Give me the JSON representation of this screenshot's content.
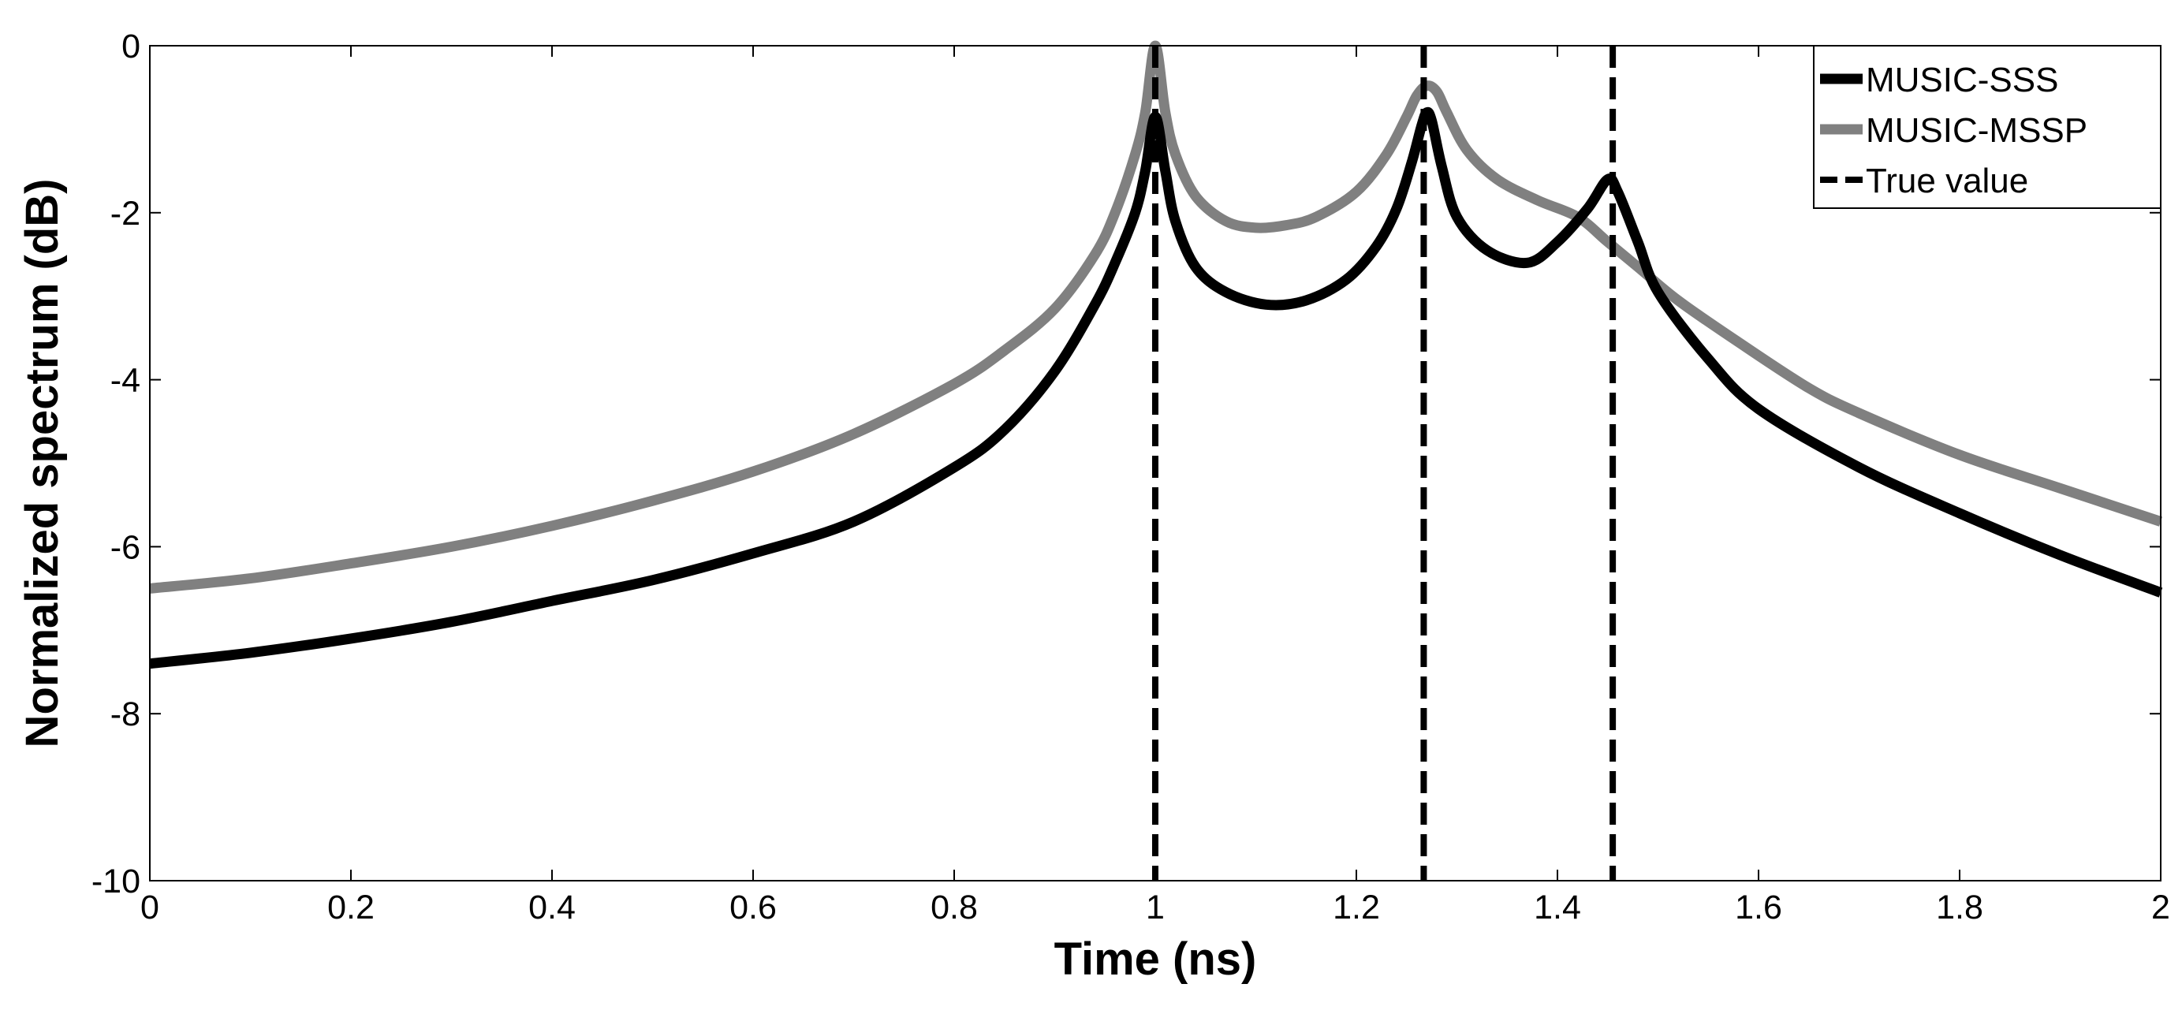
{
  "chart_data": {
    "type": "line",
    "title": "",
    "xlabel": "Time (ns)",
    "ylabel": "Normalized spectrum (dB)",
    "xlim": [
      0,
      2
    ],
    "ylim": [
      -10,
      0
    ],
    "grid": false,
    "legend_position": "top-right",
    "x_ticks": [
      0,
      0.2,
      0.4,
      0.6,
      0.8,
      1,
      1.2,
      1.4,
      1.6,
      1.8,
      2
    ],
    "x_tick_labels": [
      "0",
      "0.2",
      "0.4",
      "0.6",
      "0.8",
      "1",
      "1.2",
      "1.4",
      "1.6",
      "1.8",
      "2"
    ],
    "y_ticks": [
      0,
      -2,
      -4,
      -6,
      -8,
      -10
    ],
    "y_tick_labels": [
      "0",
      "-2",
      "-4",
      "-6",
      "-8",
      "-10"
    ],
    "series": [
      {
        "name": "MUSIC-SSS",
        "color": "#000000",
        "style": "solid",
        "x": [
          0,
          0.1,
          0.2,
          0.3,
          0.4,
          0.5,
          0.6,
          0.7,
          0.8,
          0.85,
          0.9,
          0.94,
          0.96,
          0.98,
          0.99,
          1.0,
          1.01,
          1.02,
          1.04,
          1.07,
          1.11,
          1.15,
          1.19,
          1.22,
          1.24,
          1.255,
          1.265,
          1.27,
          1.275,
          1.285,
          1.3,
          1.33,
          1.37,
          1.4,
          1.43,
          1.45,
          1.46,
          1.48,
          1.5,
          1.55,
          1.6,
          1.7,
          1.8,
          1.9,
          2.0
        ],
        "y": [
          -7.4,
          -7.27,
          -7.1,
          -6.9,
          -6.65,
          -6.4,
          -6.08,
          -5.7,
          -5.05,
          -4.6,
          -3.9,
          -3.1,
          -2.6,
          -2.0,
          -1.5,
          -0.85,
          -1.5,
          -2.1,
          -2.65,
          -2.95,
          -3.1,
          -3.05,
          -2.8,
          -2.4,
          -1.95,
          -1.4,
          -0.95,
          -0.8,
          -0.9,
          -1.45,
          -2.05,
          -2.45,
          -2.6,
          -2.35,
          -1.95,
          -1.6,
          -1.75,
          -2.35,
          -2.95,
          -3.75,
          -4.35,
          -5.05,
          -5.6,
          -6.1,
          -6.55
        ]
      },
      {
        "name": "MUSIC-MSSP",
        "color": "#808080",
        "style": "solid",
        "x": [
          0,
          0.1,
          0.2,
          0.3,
          0.4,
          0.5,
          0.6,
          0.7,
          0.8,
          0.85,
          0.9,
          0.94,
          0.96,
          0.98,
          0.99,
          1.0,
          1.01,
          1.02,
          1.04,
          1.07,
          1.1,
          1.13,
          1.16,
          1.2,
          1.23,
          1.25,
          1.26,
          1.27,
          1.28,
          1.29,
          1.31,
          1.34,
          1.38,
          1.42,
          1.45,
          1.48,
          1.52,
          1.58,
          1.65,
          1.7,
          1.8,
          1.9,
          2.0
        ],
        "y": [
          -6.5,
          -6.38,
          -6.2,
          -6.0,
          -5.75,
          -5.45,
          -5.1,
          -4.65,
          -4.05,
          -3.65,
          -3.15,
          -2.5,
          -2.0,
          -1.3,
          -0.8,
          0.0,
          -0.8,
          -1.3,
          -1.8,
          -2.1,
          -2.18,
          -2.15,
          -2.05,
          -1.75,
          -1.3,
          -0.85,
          -0.6,
          -0.48,
          -0.55,
          -0.8,
          -1.25,
          -1.6,
          -1.85,
          -2.05,
          -2.35,
          -2.65,
          -3.05,
          -3.55,
          -4.1,
          -4.4,
          -4.9,
          -5.3,
          -5.7
        ]
      },
      {
        "name": "True value",
        "color": "#000000",
        "style": "dashed",
        "vertical_lines_at_x": [
          1.0,
          1.267,
          1.455
        ]
      }
    ]
  }
}
